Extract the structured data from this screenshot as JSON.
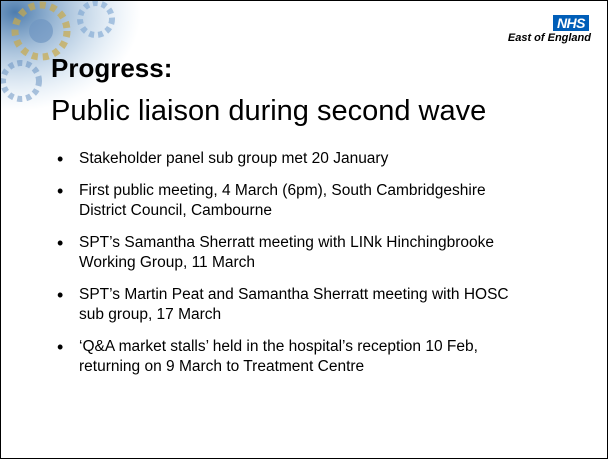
{
  "logo": {
    "nhs": "NHS",
    "region": "East of England"
  },
  "header": {
    "title": "Progress:",
    "subtitle": "Public liaison during second wave"
  },
  "bullets": [
    "Stakeholder panel sub group met 20 January",
    "First public meeting, 4 March (6pm), South Cambridgeshire District Council, Cambourne",
    "SPT’s Samantha Sherratt meeting with LINk Hinchingbrooke Working Group, 11 March",
    "SPT’s Martin Peat and Samantha Sherratt meeting with HOSC sub group, 17 March",
    "‘Q&A market stalls’ held in the hospital’s reception 10 Feb, returning on 9 March to Treatment Centre"
  ]
}
